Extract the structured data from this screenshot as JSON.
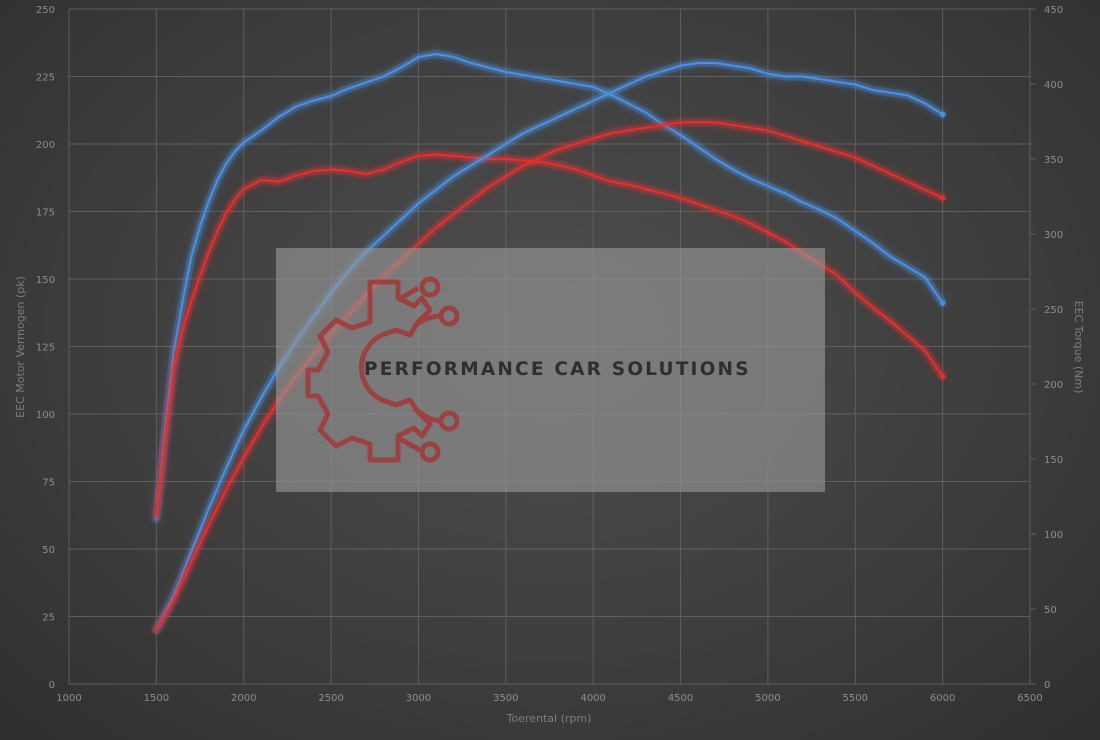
{
  "chart_data": {
    "type": "line",
    "xlabel": "Toerental (rpm)",
    "ylabel_left": "EEC Motor Vermogen (pk)",
    "ylabel_right": "EEC Torque (Nm)",
    "xlim": [
      1000,
      6500
    ],
    "ylim_left": [
      0,
      250
    ],
    "ylim_right": [
      0,
      450
    ],
    "x_ticks": [
      1000,
      1500,
      2000,
      2500,
      3000,
      3500,
      4000,
      4500,
      5000,
      5500,
      6000,
      6500
    ],
    "y_ticks_left": [
      0,
      25,
      50,
      75,
      100,
      125,
      150,
      175,
      200,
      225,
      250
    ],
    "y_ticks_right": [
      0,
      50,
      100,
      150,
      200,
      250,
      300,
      350,
      400,
      450
    ],
    "grid": true,
    "legend": "none",
    "series": [
      {
        "axis": "right",
        "color": "#4a90e2",
        "points": [
          [
            1500,
            110
          ],
          [
            1550,
            170
          ],
          [
            1600,
            222
          ],
          [
            1650,
            255
          ],
          [
            1700,
            285
          ],
          [
            1750,
            305
          ],
          [
            1800,
            322
          ],
          [
            1850,
            336
          ],
          [
            1900,
            347
          ],
          [
            1950,
            355
          ],
          [
            2000,
            361
          ],
          [
            2100,
            369
          ],
          [
            2200,
            378
          ],
          [
            2300,
            385
          ],
          [
            2400,
            389
          ],
          [
            2500,
            392
          ],
          [
            2600,
            397
          ],
          [
            2700,
            401
          ],
          [
            2800,
            405
          ],
          [
            2900,
            411
          ],
          [
            3000,
            418
          ],
          [
            3100,
            420
          ],
          [
            3200,
            418
          ],
          [
            3300,
            414
          ],
          [
            3400,
            411
          ],
          [
            3500,
            408
          ],
          [
            3600,
            406
          ],
          [
            3700,
            404
          ],
          [
            3800,
            402
          ],
          [
            3900,
            400
          ],
          [
            4000,
            398
          ],
          [
            4100,
            393
          ],
          [
            4200,
            387
          ],
          [
            4300,
            381
          ],
          [
            4400,
            373
          ],
          [
            4500,
            366
          ],
          [
            4600,
            358
          ],
          [
            4700,
            350
          ],
          [
            4800,
            343
          ],
          [
            4900,
            337
          ],
          [
            5000,
            332
          ],
          [
            5100,
            327
          ],
          [
            5200,
            321
          ],
          [
            5300,
            316
          ],
          [
            5400,
            310
          ],
          [
            5500,
            302
          ],
          [
            5600,
            294
          ],
          [
            5700,
            285
          ],
          [
            5800,
            278
          ],
          [
            5900,
            271
          ],
          [
            6000,
            254
          ]
        ]
      },
      {
        "axis": "right",
        "color": "#e03030",
        "points": [
          [
            1500,
            112
          ],
          [
            1550,
            162
          ],
          [
            1600,
            210
          ],
          [
            1650,
            236
          ],
          [
            1700,
            255
          ],
          [
            1750,
            272
          ],
          [
            1800,
            288
          ],
          [
            1850,
            302
          ],
          [
            1900,
            314
          ],
          [
            1950,
            323
          ],
          [
            2000,
            330
          ],
          [
            2100,
            336
          ],
          [
            2200,
            335
          ],
          [
            2300,
            339
          ],
          [
            2400,
            342
          ],
          [
            2500,
            343
          ],
          [
            2600,
            342
          ],
          [
            2700,
            340
          ],
          [
            2800,
            343
          ],
          [
            2900,
            348
          ],
          [
            3000,
            352
          ],
          [
            3100,
            353
          ],
          [
            3200,
            352
          ],
          [
            3300,
            351
          ],
          [
            3400,
            350
          ],
          [
            3500,
            350
          ],
          [
            3600,
            349
          ],
          [
            3700,
            348
          ],
          [
            3800,
            346
          ],
          [
            3900,
            343
          ],
          [
            4000,
            339
          ],
          [
            4100,
            335
          ],
          [
            4200,
            333
          ],
          [
            4300,
            330
          ],
          [
            4400,
            327
          ],
          [
            4500,
            324
          ],
          [
            4600,
            320
          ],
          [
            4700,
            316
          ],
          [
            4800,
            312
          ],
          [
            4900,
            307
          ],
          [
            5000,
            301
          ],
          [
            5100,
            295
          ],
          [
            5200,
            287
          ],
          [
            5300,
            280
          ],
          [
            5400,
            272
          ],
          [
            5500,
            261
          ],
          [
            5600,
            251
          ],
          [
            5700,
            242
          ],
          [
            5800,
            232
          ],
          [
            5900,
            222
          ],
          [
            6000,
            205
          ]
        ]
      },
      {
        "axis": "left",
        "color": "#4a90e2",
        "points": [
          [
            1500,
            20
          ],
          [
            1600,
            33
          ],
          [
            1700,
            49
          ],
          [
            1800,
            65
          ],
          [
            1900,
            80
          ],
          [
            2000,
            94
          ],
          [
            2100,
            106
          ],
          [
            2200,
            117
          ],
          [
            2300,
            127
          ],
          [
            2400,
            136
          ],
          [
            2500,
            145
          ],
          [
            2600,
            153
          ],
          [
            2700,
            160
          ],
          [
            2800,
            166
          ],
          [
            2900,
            172
          ],
          [
            3000,
            178
          ],
          [
            3100,
            183
          ],
          [
            3200,
            188
          ],
          [
            3300,
            192
          ],
          [
            3400,
            196
          ],
          [
            3500,
            200
          ],
          [
            3600,
            204
          ],
          [
            3700,
            207
          ],
          [
            3800,
            210
          ],
          [
            3900,
            213
          ],
          [
            4000,
            216
          ],
          [
            4100,
            219
          ],
          [
            4200,
            222
          ],
          [
            4300,
            225
          ],
          [
            4400,
            227
          ],
          [
            4500,
            229
          ],
          [
            4600,
            230
          ],
          [
            4700,
            230
          ],
          [
            4800,
            229
          ],
          [
            4900,
            228
          ],
          [
            5000,
            226
          ],
          [
            5100,
            225
          ],
          [
            5200,
            225
          ],
          [
            5300,
            224
          ],
          [
            5400,
            223
          ],
          [
            5500,
            222
          ],
          [
            5600,
            220
          ],
          [
            5700,
            219
          ],
          [
            5800,
            218
          ],
          [
            5900,
            215
          ],
          [
            6000,
            211
          ]
        ]
      },
      {
        "axis": "left",
        "color": "#e03030",
        "points": [
          [
            1500,
            20
          ],
          [
            1600,
            31
          ],
          [
            1700,
            45
          ],
          [
            1800,
            59
          ],
          [
            1900,
            72
          ],
          [
            2000,
            84
          ],
          [
            2100,
            95
          ],
          [
            2200,
            105
          ],
          [
            2300,
            114
          ],
          [
            2400,
            122
          ],
          [
            2500,
            130
          ],
          [
            2600,
            137
          ],
          [
            2700,
            144
          ],
          [
            2800,
            151
          ],
          [
            2900,
            157
          ],
          [
            3000,
            163
          ],
          [
            3100,
            169
          ],
          [
            3200,
            174
          ],
          [
            3300,
            179
          ],
          [
            3400,
            184
          ],
          [
            3500,
            188
          ],
          [
            3600,
            192
          ],
          [
            3700,
            195
          ],
          [
            3800,
            198
          ],
          [
            3900,
            200
          ],
          [
            4000,
            202
          ],
          [
            4100,
            204
          ],
          [
            4200,
            205
          ],
          [
            4300,
            206
          ],
          [
            4400,
            207
          ],
          [
            4500,
            208
          ],
          [
            4600,
            208
          ],
          [
            4700,
            208
          ],
          [
            4800,
            207
          ],
          [
            4900,
            206
          ],
          [
            5000,
            205
          ],
          [
            5100,
            203
          ],
          [
            5200,
            201
          ],
          [
            5300,
            199
          ],
          [
            5400,
            197
          ],
          [
            5500,
            195
          ],
          [
            5600,
            192
          ],
          [
            5700,
            189
          ],
          [
            5800,
            186
          ],
          [
            5900,
            183
          ],
          [
            6000,
            180
          ]
        ]
      }
    ]
  },
  "watermark": {
    "text": "PERFORMANCE CAR SOLUTIONS",
    "box_color": "#9a9a9a",
    "text_color": "#2f2f2f",
    "logo_color": "#a23838",
    "logo_icon": "gear-circuit-icon"
  }
}
